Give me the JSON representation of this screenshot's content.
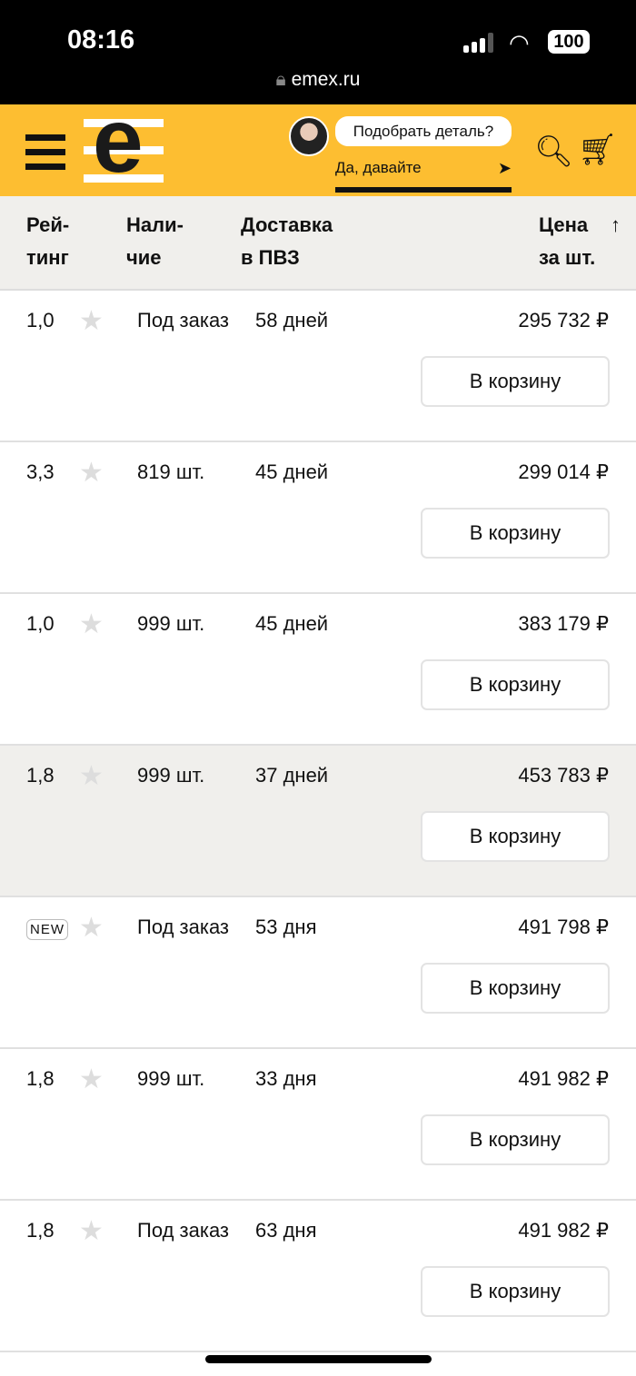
{
  "status": {
    "time": "08:16",
    "battery": "100",
    "url": "emex.ru"
  },
  "header": {
    "bubble": "Подобрать деталь?",
    "answer": "Да, давайте"
  },
  "columns": {
    "rating": "Рей-\nтинг",
    "stock": "Нали-\nчие",
    "delivery": "Доставка\nв ПВЗ",
    "price": "Цена\nза шт.",
    "sort": "↑"
  },
  "button_label": "В корзину",
  "rows": [
    {
      "rating": "1,0",
      "stock": "Под заказ",
      "delivery": "58 дней",
      "price": "295 732 ₽"
    },
    {
      "rating": "3,3",
      "stock": "819 шт.",
      "delivery": "45 дней",
      "price": "299 014 ₽"
    },
    {
      "rating": "1,0",
      "stock": "999 шт.",
      "delivery": "45 дней",
      "price": "383 179 ₽"
    },
    {
      "rating": "1,8",
      "stock": "999 шт.",
      "delivery": "37 дней",
      "price": "453 783 ₽",
      "highlighted": true
    },
    {
      "rating": "NEW",
      "stock": "Под заказ",
      "delivery": "53 дня",
      "price": "491 798 ₽",
      "is_new": true
    },
    {
      "rating": "1,8",
      "stock": "999 шт.",
      "delivery": "33 дня",
      "price": "491 982 ₽"
    },
    {
      "rating": "1,8",
      "stock": "Под заказ",
      "delivery": "63 дня",
      "price": "491 982 ₽"
    }
  ]
}
